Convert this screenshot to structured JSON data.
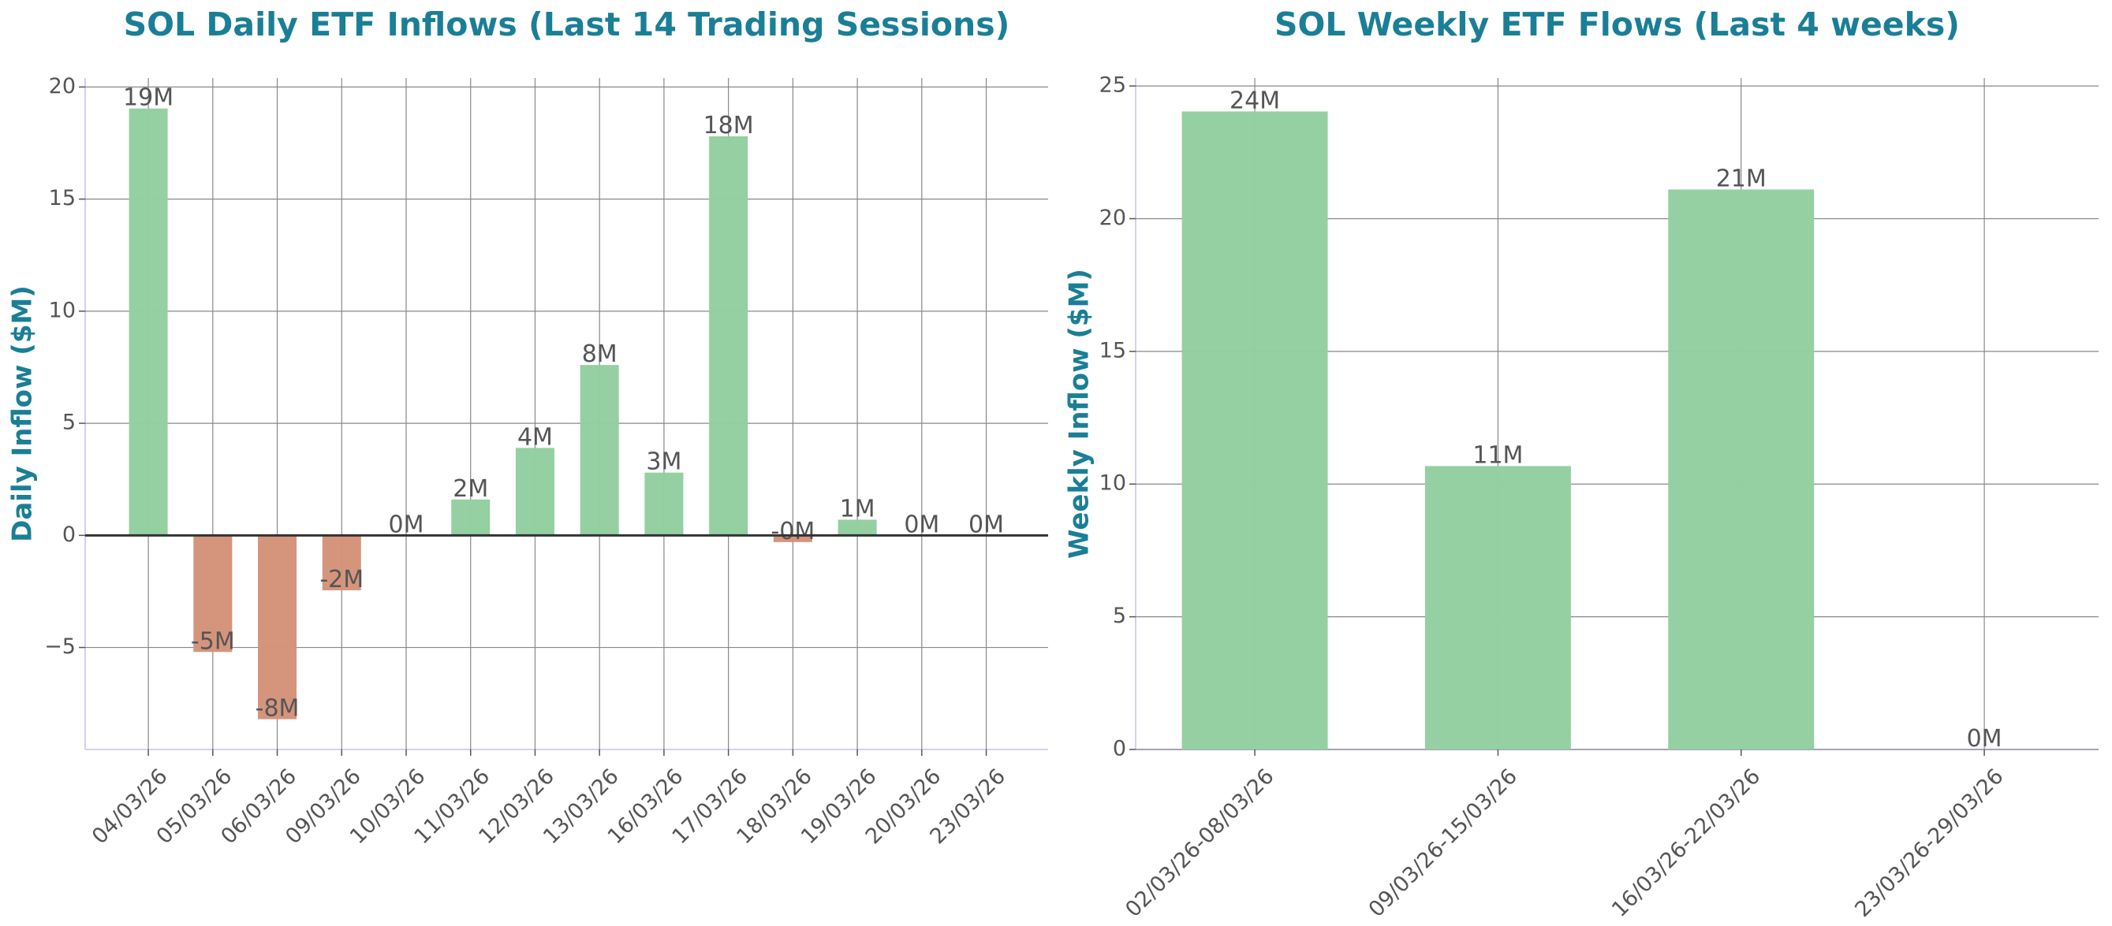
{
  "chart_data": [
    {
      "type": "bar",
      "title": "SOL Daily ETF Inflows (Last 14 Trading Sessions)",
      "y_label": "Daily Inflow ($M)",
      "categories": [
        "04/03/26",
        "05/03/26",
        "06/03/26",
        "09/03/26",
        "10/03/26",
        "11/03/26",
        "12/03/26",
        "13/03/26",
        "16/03/26",
        "17/03/26",
        "18/03/26",
        "19/03/26",
        "20/03/26",
        "23/03/26"
      ],
      "values": [
        19.04,
        -5.2,
        -8.2,
        -2.45,
        0,
        1.6,
        3.9,
        7.6,
        2.8,
        17.8,
        -0.3,
        0.7,
        0,
        0
      ],
      "value_labels": [
        "19M",
        "-5M",
        "-8M",
        "-2M",
        "0M",
        "2M",
        "4M",
        "8M",
        "3M",
        "18M",
        "-0M",
        "1M",
        "0M",
        "0M"
      ],
      "positive_color": "#93cfa0",
      "negative_color": "#d4937a",
      "ylim": [
        -9.55,
        20.4
      ],
      "yticks": [
        {
          "value": -5,
          "label": "−5"
        },
        0,
        5,
        10,
        15,
        20
      ],
      "grid": true
    },
    {
      "type": "bar",
      "title": "SOL Weekly ETF Flows (Last 4 weeks)",
      "y_label": "Weekly Inflow ($M)",
      "categories": [
        "02/03/26-08/03/26",
        "09/03/26-15/03/26",
        "16/03/26-22/03/26",
        "23/03/26-29/03/26"
      ],
      "values": [
        24.04,
        10.68,
        21.1,
        0
      ],
      "value_labels": [
        "24M",
        "11M",
        "21M",
        "0M"
      ],
      "positive_color": "#93cfa0",
      "negative_color": "#d4937a",
      "ylim": [
        0,
        25.3
      ],
      "yticks": [
        0,
        5,
        10,
        15,
        20,
        25
      ],
      "grid": true
    }
  ]
}
